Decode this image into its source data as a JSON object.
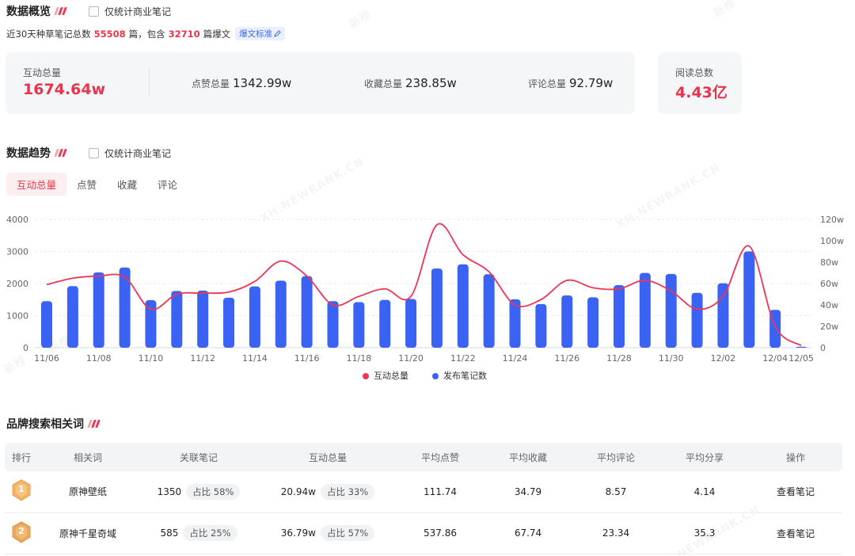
{
  "overview": {
    "title": "数据概览",
    "checkbox_label": "仅统计商业笔记",
    "sub": {
      "prefix": "近30天种草笔记总数",
      "total_notes": "55508",
      "mid": "篇，包含",
      "explosive_notes": "32710",
      "suffix": "篇爆文",
      "standard_tag": "爆文标准"
    },
    "stats": {
      "interaction_label": "互动总量",
      "interaction_value": "1674.64w",
      "likes_label": "点赞总量",
      "likes_value": "1342.99w",
      "favorites_label": "收藏总量",
      "favorites_value": "238.85w",
      "comments_label": "评论总量",
      "comments_value": "92.79w",
      "reads_label": "阅读总数",
      "reads_value": "4.43亿"
    }
  },
  "trend": {
    "title": "数据趋势",
    "checkbox_label": "仅统计商业笔记",
    "tabs": [
      "互动总量",
      "点赞",
      "收藏",
      "评论"
    ],
    "active_tab": 0
  },
  "watermark_text": "XH.NEWRANK.CN",
  "watermark_cn": "新榜",
  "chart_data": {
    "type": "bar",
    "categories": [
      "11/06",
      "11/07",
      "11/08",
      "11/09",
      "11/10",
      "11/11",
      "11/12",
      "11/13",
      "11/14",
      "11/15",
      "11/16",
      "11/17",
      "11/18",
      "11/19",
      "11/20",
      "11/21",
      "11/22",
      "11/23",
      "11/24",
      "11/25",
      "11/26",
      "11/27",
      "11/28",
      "11/29",
      "11/30",
      "12/01",
      "12/02",
      "12/03",
      "12/04",
      "12/05"
    ],
    "x_tick_labels": [
      "11/06",
      "11/08",
      "11/10",
      "11/12",
      "11/14",
      "11/16",
      "11/18",
      "11/20",
      "11/22",
      "11/24",
      "11/26",
      "11/28",
      "11/30",
      "12/02",
      "12/04",
      "12/05"
    ],
    "series": [
      {
        "name": "互动总量",
        "kind": "line",
        "axis": "right",
        "color": "#ee3555",
        "values": [
          59,
          65,
          67,
          66,
          36,
          50,
          51,
          52,
          62,
          81,
          67,
          40,
          48,
          55,
          48,
          115,
          87,
          71,
          40,
          45,
          63,
          56,
          55,
          63,
          53,
          36,
          48,
          95,
          20,
          2
        ]
      },
      {
        "name": "发布笔记数",
        "kind": "bar",
        "axis": "left",
        "color": "#3a63f4",
        "values": [
          1450,
          1920,
          2350,
          2500,
          1480,
          1770,
          1780,
          1560,
          1910,
          2090,
          2230,
          1450,
          1420,
          1490,
          1520,
          2470,
          2600,
          2290,
          1510,
          1360,
          1630,
          1570,
          1950,
          2330,
          2300,
          1710,
          2010,
          3000,
          1180,
          30
        ]
      }
    ],
    "ylim": [
      0,
      4000
    ],
    "yticks": [
      0,
      1000,
      2000,
      3000,
      4000
    ],
    "y2lim": [
      0,
      120
    ],
    "y2ticks": [
      "0",
      "20w",
      "40w",
      "60w",
      "80w",
      "100w",
      "120w"
    ],
    "legend": [
      "互动总量",
      "发布笔记数"
    ]
  },
  "keywords": {
    "title": "品牌搜索相关词",
    "headers": [
      "排行",
      "相关词",
      "关联笔记",
      "互动总量",
      "平均点赞",
      "平均收藏",
      "平均评论",
      "平均分享",
      "操作"
    ],
    "rows": [
      {
        "rank": "1",
        "word": "原神壁纸",
        "notes": "1350",
        "notes_pct": "占比 58%",
        "inter": "20.94w",
        "inter_pct": "占比 33%",
        "avg_like": "111.74",
        "avg_fav": "34.79",
        "avg_cmt": "8.57",
        "avg_share": "4.14",
        "action": "查看笔记"
      },
      {
        "rank": "2",
        "word": "原神千星奇域",
        "notes": "585",
        "notes_pct": "占比 25%",
        "inter": "36.79w",
        "inter_pct": "占比 57%",
        "avg_like": "537.86",
        "avg_fav": "67.74",
        "avg_cmt": "23.34",
        "avg_share": "35.3",
        "action": "查看笔记"
      }
    ]
  }
}
